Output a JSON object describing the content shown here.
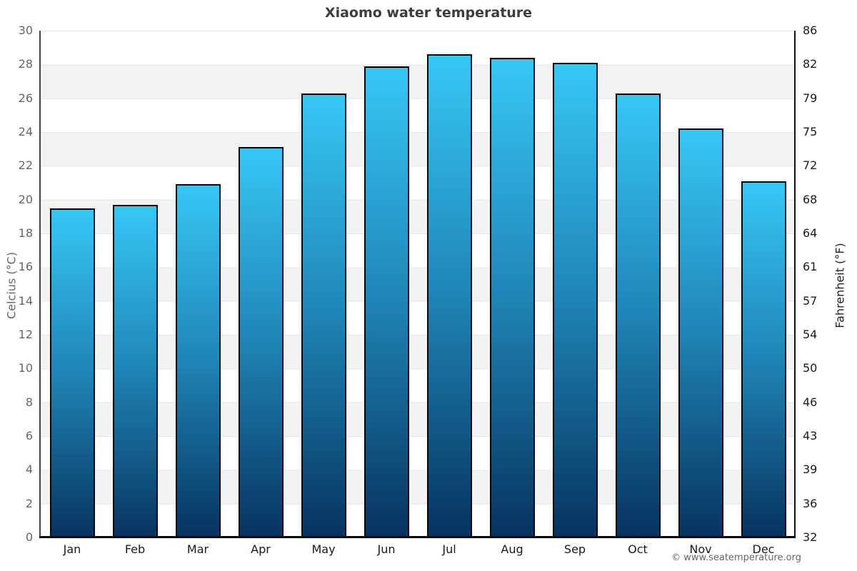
{
  "footer": {
    "copyright": "© www.seatemperature.org"
  },
  "chart_data": {
    "type": "bar",
    "title": "Xiaomo water temperature",
    "categories": [
      "Jan",
      "Feb",
      "Mar",
      "Apr",
      "May",
      "Jun",
      "Jul",
      "Aug",
      "Sep",
      "Oct",
      "Nov",
      "Dec"
    ],
    "values": [
      19.5,
      19.7,
      20.9,
      23.1,
      26.3,
      27.9,
      28.6,
      28.4,
      28.1,
      26.3,
      24.2,
      21.1
    ],
    "series_name": "Water temperature",
    "xlabel": "",
    "ylabel_left": "Celcius (°C)",
    "ylabel_right": "Fahrenheit (°F)",
    "ylim": [
      0,
      30
    ],
    "y_ticks_celsius": [
      "0",
      "2",
      "4",
      "6",
      "8",
      "10",
      "12",
      "14",
      "16",
      "18",
      "20",
      "22",
      "24",
      "26",
      "28",
      "30"
    ],
    "y_ticks_fahrenheit": [
      "32",
      "36",
      "39",
      "43",
      "46",
      "50",
      "54",
      "57",
      "61",
      "64",
      "68",
      "72",
      "75",
      "79",
      "82",
      "86"
    ],
    "grid": "horizontal-bands",
    "legend_position": "none",
    "colors": {
      "bar_gradient_top": "#37c7f5",
      "bar_gradient_mid": "#1f84b5",
      "bar_gradient_bottom": "#07335f",
      "bar_border": "#000000",
      "band_gray": "#f3f3f3",
      "band_white": "#ffffff",
      "title_text": "#3d3d3d",
      "left_tick_text": "#666666",
      "right_tick_text": "#1a1a1a"
    }
  }
}
